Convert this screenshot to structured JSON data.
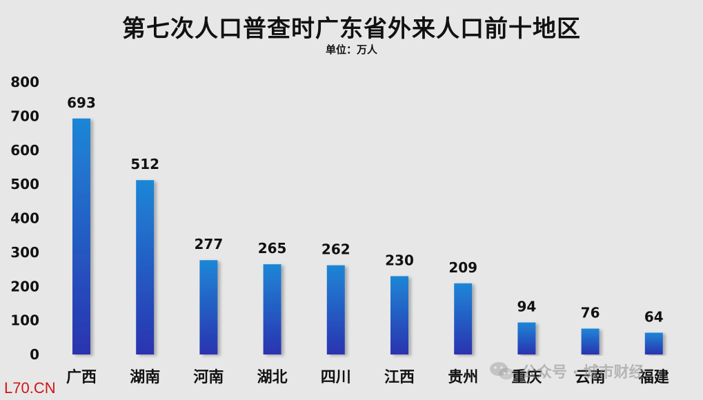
{
  "chart_data": {
    "type": "bar",
    "title": "第七次人口普查时广东省外来人口前十地区",
    "subtitle": "单位：万人",
    "categories": [
      "广西",
      "湖南",
      "河南",
      "湖北",
      "四川",
      "江西",
      "贵州",
      "重庆",
      "云南",
      "福建"
    ],
    "values": [
      693,
      512,
      277,
      265,
      262,
      230,
      209,
      94,
      76,
      64
    ],
    "yticks": [
      "0",
      "100",
      "200",
      "300",
      "400",
      "500",
      "600",
      "700",
      "800"
    ],
    "ylim": [
      0,
      800
    ],
    "grid": false,
    "colors": {
      "bar_top": "#1e86d6",
      "bar_bottom": "#2a33b0"
    }
  },
  "watermarks": {
    "left": "L70.CN",
    "right": "公众号 · 城市财经",
    "right_icon": "wechat-icon"
  }
}
